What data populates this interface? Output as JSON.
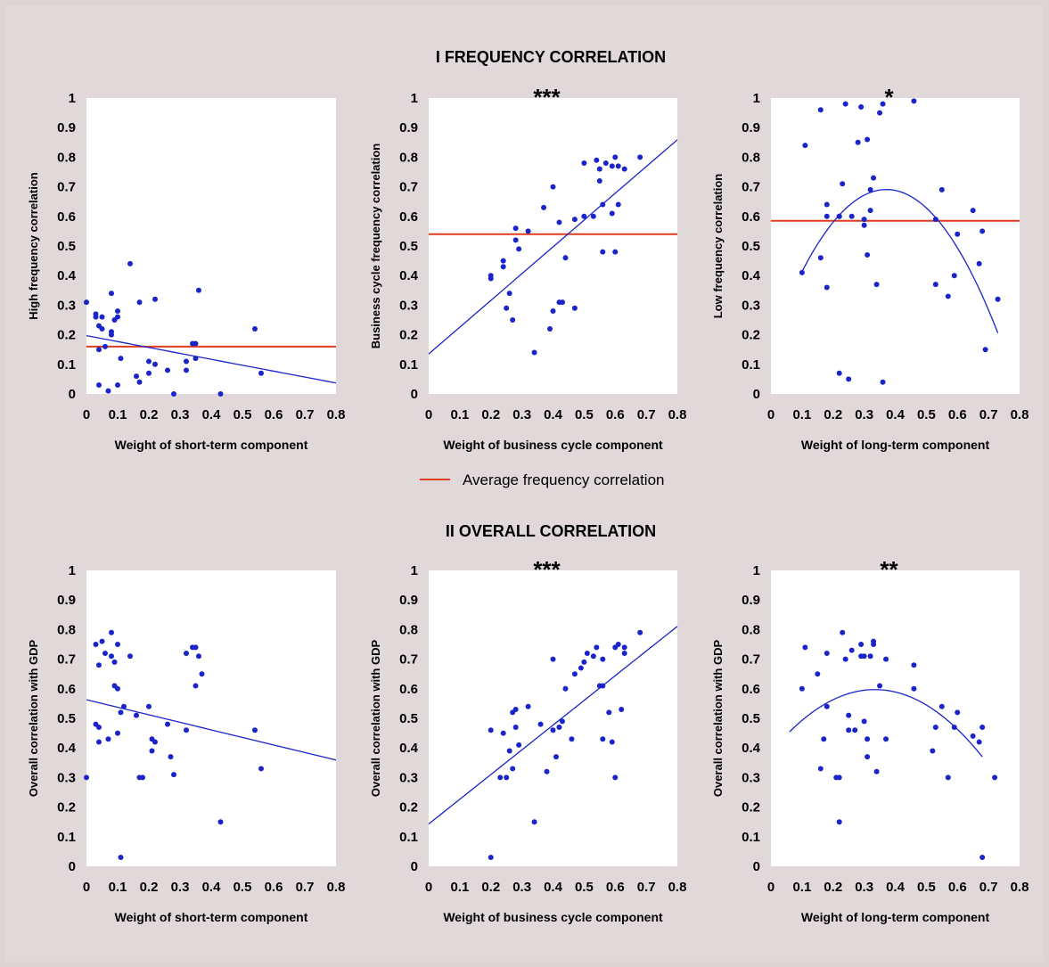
{
  "sections": {
    "top_title": "I FREQUENCY CORRELATION",
    "bottom_title": "II OVERALL CORRELATION"
  },
  "legend": {
    "label": "Average frequency correlation",
    "color": "#e03c1e"
  },
  "colors": {
    "points": "#1a24c8",
    "fit": "#1a24c8",
    "average": "#e03c1e",
    "plot_bg": "#ffffff"
  },
  "chart_data": [
    {
      "type": "scatter",
      "stars": "",
      "xlabel": "Weight of short-term component",
      "ylabel": "High frequency correlation",
      "xlim": [
        0,
        0.8
      ],
      "ylim": [
        0,
        1
      ],
      "xticks": [
        "0",
        "0.1",
        "0.2",
        "0.3",
        "0.4",
        "0.5",
        "0.6",
        "0.7",
        "0.8"
      ],
      "yticks": [
        "0",
        "0.1",
        "0.2",
        "0.3",
        "0.4",
        "0.5",
        "0.6",
        "0.7",
        "0.8",
        "0.9",
        "1"
      ],
      "average_line": 0.16,
      "fit": {
        "kind": "linear",
        "coef": [
          0.197,
          -0.2
        ],
        "x_range": [
          0,
          0.8
        ]
      },
      "points": [
        [
          0.0,
          0.31
        ],
        [
          0.03,
          0.26
        ],
        [
          0.03,
          0.27
        ],
        [
          0.04,
          0.23
        ],
        [
          0.05,
          0.22
        ],
        [
          0.05,
          0.26
        ],
        [
          0.04,
          0.15
        ],
        [
          0.06,
          0.16
        ],
        [
          0.08,
          0.2
        ],
        [
          0.08,
          0.21
        ],
        [
          0.08,
          0.34
        ],
        [
          0.09,
          0.25
        ],
        [
          0.1,
          0.28
        ],
        [
          0.1,
          0.26
        ],
        [
          0.11,
          0.12
        ],
        [
          0.1,
          0.03
        ],
        [
          0.07,
          0.01
        ],
        [
          0.04,
          0.03
        ],
        [
          0.14,
          0.44
        ],
        [
          0.17,
          0.31
        ],
        [
          0.22,
          0.32
        ],
        [
          0.16,
          0.06
        ],
        [
          0.17,
          0.04
        ],
        [
          0.2,
          0.11
        ],
        [
          0.2,
          0.07
        ],
        [
          0.22,
          0.1
        ],
        [
          0.26,
          0.08
        ],
        [
          0.28,
          0.0
        ],
        [
          0.32,
          0.11
        ],
        [
          0.32,
          0.08
        ],
        [
          0.34,
          0.17
        ],
        [
          0.35,
          0.12
        ],
        [
          0.35,
          0.17
        ],
        [
          0.36,
          0.35
        ],
        [
          0.43,
          0.0
        ],
        [
          0.54,
          0.22
        ],
        [
          0.56,
          0.07
        ]
      ]
    },
    {
      "type": "scatter",
      "stars": "***",
      "xlabel": "Weight of business cycle component",
      "ylabel": "Business cycle frequency correlation",
      "xlim": [
        0,
        0.8
      ],
      "ylim": [
        0,
        1
      ],
      "xticks": [
        "0",
        "0.1",
        "0.2",
        "0.3",
        "0.4",
        "0.5",
        "0.6",
        "0.7",
        "0.8"
      ],
      "yticks": [
        "0",
        "0.1",
        "0.2",
        "0.3",
        "0.4",
        "0.5",
        "0.6",
        "0.7",
        "0.8",
        "0.9",
        "1"
      ],
      "average_line": 0.54,
      "fit": {
        "kind": "linear",
        "coef": [
          0.135,
          0.905
        ],
        "x_range": [
          0,
          0.8
        ]
      },
      "points": [
        [
          0.2,
          0.39
        ],
        [
          0.2,
          0.4
        ],
        [
          0.24,
          0.45
        ],
        [
          0.24,
          0.43
        ],
        [
          0.25,
          0.29
        ],
        [
          0.26,
          0.34
        ],
        [
          0.27,
          0.25
        ],
        [
          0.28,
          0.56
        ],
        [
          0.28,
          0.52
        ],
        [
          0.29,
          0.49
        ],
        [
          0.32,
          0.55
        ],
        [
          0.34,
          0.14
        ],
        [
          0.37,
          0.63
        ],
        [
          0.39,
          0.22
        ],
        [
          0.4,
          0.7
        ],
        [
          0.4,
          0.28
        ],
        [
          0.42,
          0.31
        ],
        [
          0.42,
          0.58
        ],
        [
          0.43,
          0.31
        ],
        [
          0.44,
          0.46
        ],
        [
          0.47,
          0.29
        ],
        [
          0.47,
          0.59
        ],
        [
          0.5,
          0.6
        ],
        [
          0.5,
          0.78
        ],
        [
          0.53,
          0.6
        ],
        [
          0.54,
          0.79
        ],
        [
          0.55,
          0.72
        ],
        [
          0.55,
          0.76
        ],
        [
          0.56,
          0.64
        ],
        [
          0.56,
          0.48
        ],
        [
          0.57,
          0.78
        ],
        [
          0.59,
          0.77
        ],
        [
          0.59,
          0.61
        ],
        [
          0.6,
          0.8
        ],
        [
          0.6,
          0.48
        ],
        [
          0.61,
          0.77
        ],
        [
          0.61,
          0.64
        ],
        [
          0.63,
          0.76
        ],
        [
          0.68,
          0.8
        ]
      ]
    },
    {
      "type": "scatter",
      "stars": "*",
      "xlabel": "Weight of long-term component",
      "ylabel": "Low frequency correlation",
      "xlim": [
        0,
        0.8
      ],
      "ylim": [
        0,
        1
      ],
      "xticks": [
        "0",
        "0.1",
        "0.2",
        "0.3",
        "0.4",
        "0.5",
        "0.6",
        "0.7",
        "0.8"
      ],
      "yticks": [
        "0",
        "0.1",
        "0.2",
        "0.3",
        "0.4",
        "0.5",
        "0.6",
        "0.7",
        "0.8",
        "0.9",
        "1"
      ],
      "average_line": 0.585,
      "fit": {
        "kind": "quadratic",
        "coef": [
          0.171,
          2.8,
          -3.77
        ],
        "x_range": [
          0.1,
          0.73
        ]
      },
      "points": [
        [
          0.1,
          0.41
        ],
        [
          0.11,
          0.84
        ],
        [
          0.16,
          0.96
        ],
        [
          0.16,
          0.46
        ],
        [
          0.18,
          0.36
        ],
        [
          0.18,
          0.64
        ],
        [
          0.18,
          0.6
        ],
        [
          0.22,
          0.6
        ],
        [
          0.22,
          0.6
        ],
        [
          0.22,
          0.07
        ],
        [
          0.23,
          0.71
        ],
        [
          0.24,
          0.98
        ],
        [
          0.25,
          0.05
        ],
        [
          0.26,
          0.6
        ],
        [
          0.28,
          0.85
        ],
        [
          0.29,
          0.97
        ],
        [
          0.3,
          0.57
        ],
        [
          0.3,
          0.59
        ],
        [
          0.31,
          0.86
        ],
        [
          0.31,
          0.47
        ],
        [
          0.32,
          0.62
        ],
        [
          0.32,
          0.69
        ],
        [
          0.33,
          0.73
        ],
        [
          0.34,
          0.37
        ],
        [
          0.35,
          0.95
        ],
        [
          0.36,
          0.98
        ],
        [
          0.36,
          0.04
        ],
        [
          0.46,
          0.99
        ],
        [
          0.53,
          0.59
        ],
        [
          0.53,
          0.37
        ],
        [
          0.55,
          0.69
        ],
        [
          0.57,
          0.33
        ],
        [
          0.59,
          0.4
        ],
        [
          0.6,
          0.54
        ],
        [
          0.65,
          0.62
        ],
        [
          0.67,
          0.44
        ],
        [
          0.68,
          0.55
        ],
        [
          0.69,
          0.15
        ],
        [
          0.73,
          0.32
        ]
      ]
    },
    {
      "type": "scatter",
      "stars": "",
      "xlabel": "Weight of short-term component",
      "ylabel": "Overall correlation with GDP",
      "xlim": [
        0,
        0.8
      ],
      "ylim": [
        0,
        1
      ],
      "xticks": [
        "0",
        "0.1",
        "0.2",
        "0.3",
        "0.4",
        "0.5",
        "0.6",
        "0.7",
        "0.8"
      ],
      "yticks": [
        "0",
        "0.1",
        "0.2",
        "0.3",
        "0.4",
        "0.5",
        "0.6",
        "0.7",
        "0.8",
        "0.9",
        "1"
      ],
      "average_line": null,
      "fit": {
        "kind": "linear",
        "coef": [
          0.563,
          -0.255
        ],
        "x_range": [
          0,
          0.8
        ]
      },
      "points": [
        [
          0.0,
          0.3
        ],
        [
          0.03,
          0.75
        ],
        [
          0.03,
          0.48
        ],
        [
          0.04,
          0.47
        ],
        [
          0.04,
          0.68
        ],
        [
          0.04,
          0.42
        ],
        [
          0.05,
          0.76
        ],
        [
          0.06,
          0.72
        ],
        [
          0.07,
          0.43
        ],
        [
          0.08,
          0.79
        ],
        [
          0.08,
          0.71
        ],
        [
          0.09,
          0.69
        ],
        [
          0.09,
          0.61
        ],
        [
          0.1,
          0.6
        ],
        [
          0.1,
          0.75
        ],
        [
          0.1,
          0.45
        ],
        [
          0.11,
          0.52
        ],
        [
          0.11,
          0.03
        ],
        [
          0.12,
          0.54
        ],
        [
          0.14,
          0.71
        ],
        [
          0.16,
          0.51
        ],
        [
          0.17,
          0.3
        ],
        [
          0.18,
          0.3
        ],
        [
          0.2,
          0.54
        ],
        [
          0.21,
          0.43
        ],
        [
          0.21,
          0.39
        ],
        [
          0.22,
          0.42
        ],
        [
          0.26,
          0.48
        ],
        [
          0.27,
          0.37
        ],
        [
          0.28,
          0.31
        ],
        [
          0.32,
          0.72
        ],
        [
          0.32,
          0.46
        ],
        [
          0.34,
          0.74
        ],
        [
          0.35,
          0.61
        ],
        [
          0.35,
          0.74
        ],
        [
          0.36,
          0.71
        ],
        [
          0.37,
          0.65
        ],
        [
          0.43,
          0.15
        ],
        [
          0.54,
          0.46
        ],
        [
          0.56,
          0.33
        ]
      ]
    },
    {
      "type": "scatter",
      "stars": "***",
      "xlabel": "Weight of business cycle component",
      "ylabel": "Overall correlation with GDP",
      "xlim": [
        0,
        0.8
      ],
      "ylim": [
        0,
        1
      ],
      "xticks": [
        "0",
        "0.1",
        "0.2",
        "0.3",
        "0.4",
        "0.5",
        "0.6",
        "0.7",
        "0.8"
      ],
      "yticks": [
        "0",
        "0.1",
        "0.2",
        "0.3",
        "0.4",
        "0.5",
        "0.6",
        "0.7",
        "0.8",
        "0.9",
        "1"
      ],
      "average_line": null,
      "fit": {
        "kind": "linear",
        "coef": [
          0.143,
          0.835
        ],
        "x_range": [
          0,
          0.8
        ]
      },
      "points": [
        [
          0.2,
          0.46
        ],
        [
          0.2,
          0.03
        ],
        [
          0.23,
          0.3
        ],
        [
          0.24,
          0.45
        ],
        [
          0.25,
          0.3
        ],
        [
          0.26,
          0.39
        ],
        [
          0.27,
          0.33
        ],
        [
          0.27,
          0.52
        ],
        [
          0.28,
          0.47
        ],
        [
          0.28,
          0.53
        ],
        [
          0.29,
          0.41
        ],
        [
          0.32,
          0.54
        ],
        [
          0.34,
          0.15
        ],
        [
          0.36,
          0.48
        ],
        [
          0.38,
          0.32
        ],
        [
          0.4,
          0.46
        ],
        [
          0.4,
          0.7
        ],
        [
          0.41,
          0.37
        ],
        [
          0.42,
          0.47
        ],
        [
          0.43,
          0.49
        ],
        [
          0.44,
          0.6
        ],
        [
          0.46,
          0.43
        ],
        [
          0.47,
          0.65
        ],
        [
          0.49,
          0.67
        ],
        [
          0.5,
          0.69
        ],
        [
          0.51,
          0.72
        ],
        [
          0.53,
          0.71
        ],
        [
          0.54,
          0.74
        ],
        [
          0.55,
          0.61
        ],
        [
          0.56,
          0.7
        ],
        [
          0.56,
          0.61
        ],
        [
          0.56,
          0.43
        ],
        [
          0.58,
          0.52
        ],
        [
          0.59,
          0.42
        ],
        [
          0.6,
          0.74
        ],
        [
          0.6,
          0.3
        ],
        [
          0.61,
          0.75
        ],
        [
          0.62,
          0.53
        ],
        [
          0.63,
          0.74
        ],
        [
          0.63,
          0.72
        ],
        [
          0.68,
          0.79
        ]
      ]
    },
    {
      "type": "scatter",
      "stars": "**",
      "xlabel": "Weight of long-term component",
      "ylabel": "Overall correlation with GDP",
      "xlim": [
        0,
        0.8
      ],
      "ylim": [
        0,
        1
      ],
      "xticks": [
        "0",
        "0.1",
        "0.2",
        "0.3",
        "0.4",
        "0.5",
        "0.6",
        "0.7",
        "0.8"
      ],
      "yticks": [
        "0",
        "0.1",
        "0.2",
        "0.3",
        "0.4",
        "0.5",
        "0.6",
        "0.7",
        "0.8",
        "0.9",
        "1"
      ],
      "average_line": null,
      "fit": {
        "kind": "quadratic",
        "coef": [
          0.385,
          1.27,
          -1.9
        ],
        "x_range": [
          0.06,
          0.68
        ]
      },
      "points": [
        [
          0.1,
          0.6
        ],
        [
          0.11,
          0.74
        ],
        [
          0.15,
          0.65
        ],
        [
          0.16,
          0.33
        ],
        [
          0.17,
          0.43
        ],
        [
          0.18,
          0.72
        ],
        [
          0.18,
          0.54
        ],
        [
          0.21,
          0.3
        ],
        [
          0.22,
          0.3
        ],
        [
          0.22,
          0.15
        ],
        [
          0.23,
          0.79
        ],
        [
          0.24,
          0.7
        ],
        [
          0.25,
          0.51
        ],
        [
          0.25,
          0.46
        ],
        [
          0.26,
          0.73
        ],
        [
          0.27,
          0.46
        ],
        [
          0.29,
          0.75
        ],
        [
          0.29,
          0.71
        ],
        [
          0.3,
          0.71
        ],
        [
          0.3,
          0.49
        ],
        [
          0.31,
          0.37
        ],
        [
          0.31,
          0.43
        ],
        [
          0.32,
          0.71
        ],
        [
          0.33,
          0.75
        ],
        [
          0.33,
          0.76
        ],
        [
          0.34,
          0.32
        ],
        [
          0.35,
          0.61
        ],
        [
          0.37,
          0.43
        ],
        [
          0.37,
          0.7
        ],
        [
          0.46,
          0.68
        ],
        [
          0.46,
          0.6
        ],
        [
          0.52,
          0.39
        ],
        [
          0.53,
          0.47
        ],
        [
          0.55,
          0.54
        ],
        [
          0.57,
          0.3
        ],
        [
          0.59,
          0.47
        ],
        [
          0.6,
          0.52
        ],
        [
          0.65,
          0.44
        ],
        [
          0.67,
          0.42
        ],
        [
          0.68,
          0.47
        ],
        [
          0.68,
          0.03
        ],
        [
          0.72,
          0.3
        ]
      ]
    }
  ]
}
